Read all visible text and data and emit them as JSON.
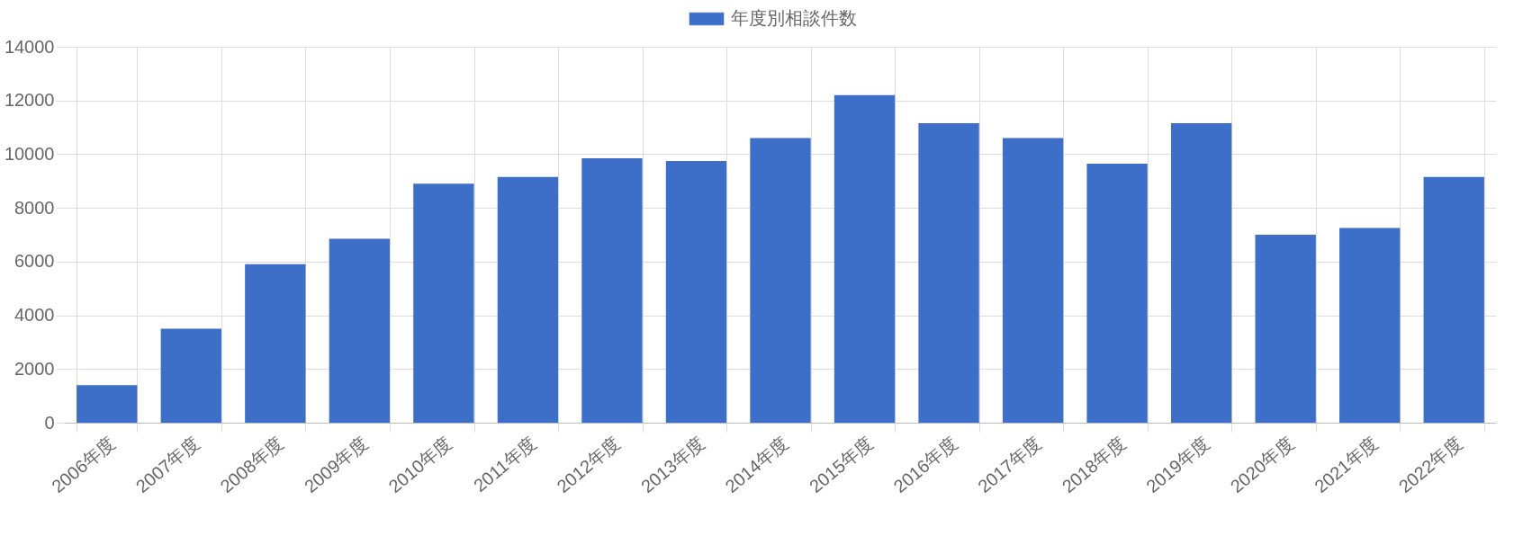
{
  "chart_data": {
    "type": "bar",
    "categories": [
      "2006年度",
      "2007年度",
      "2008年度",
      "2009年度",
      "2010年度",
      "2011年度",
      "2012年度",
      "2013年度",
      "2014年度",
      "2015年度",
      "2016年度",
      "2017年度",
      "2018年度",
      "2019年度",
      "2020年度",
      "2021年度",
      "2022年度"
    ],
    "series": [
      {
        "name": "年度別相談件数",
        "color": "#3d6fc8",
        "values": [
          1400,
          3500,
          5900,
          6850,
          8900,
          9150,
          9850,
          9750,
          10600,
          12200,
          11150,
          10600,
          9650,
          11150,
          7000,
          7250,
          9150
        ]
      }
    ],
    "ylim": [
      0,
      14000
    ],
    "yticks": [
      0,
      2000,
      4000,
      6000,
      8000,
      10000,
      12000,
      14000
    ],
    "grid": true,
    "legend": "top"
  }
}
